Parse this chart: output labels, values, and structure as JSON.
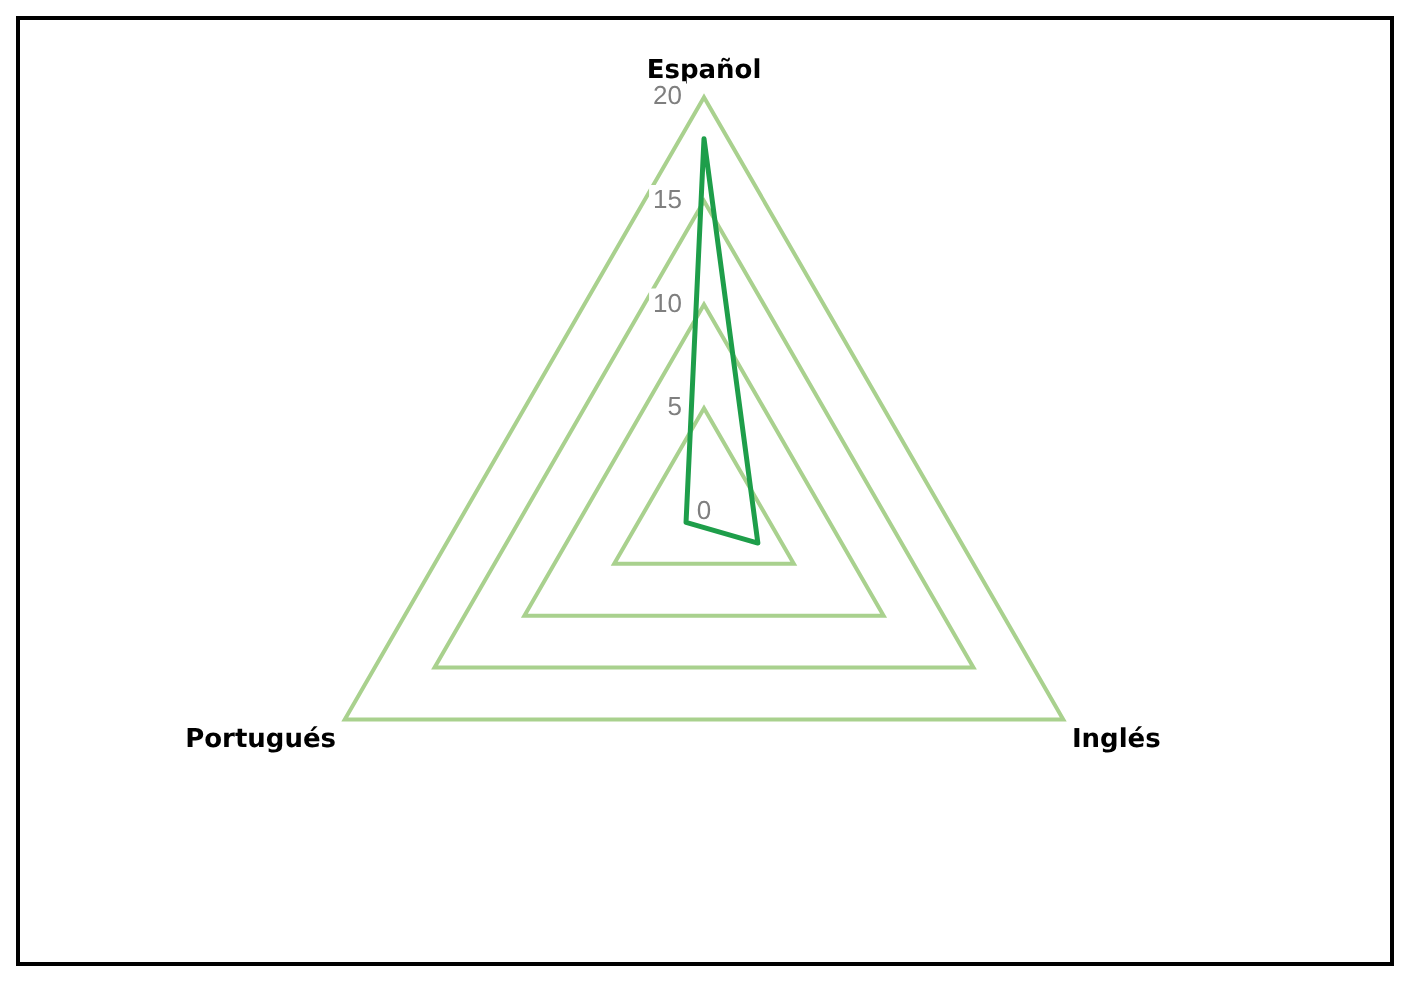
{
  "chart_data": {
    "type": "radar",
    "categories": [
      "Español",
      "Inglés",
      "Portugués"
    ],
    "series": [
      {
        "color": "#1e9e4a",
        "values": [
          18,
          3,
          1
        ]
      }
    ],
    "ylim": [
      0,
      20
    ],
    "yticks": [
      0,
      5,
      10,
      15,
      20
    ],
    "grid": true,
    "legend": false,
    "marker": "none",
    "line_style": "solid"
  }
}
